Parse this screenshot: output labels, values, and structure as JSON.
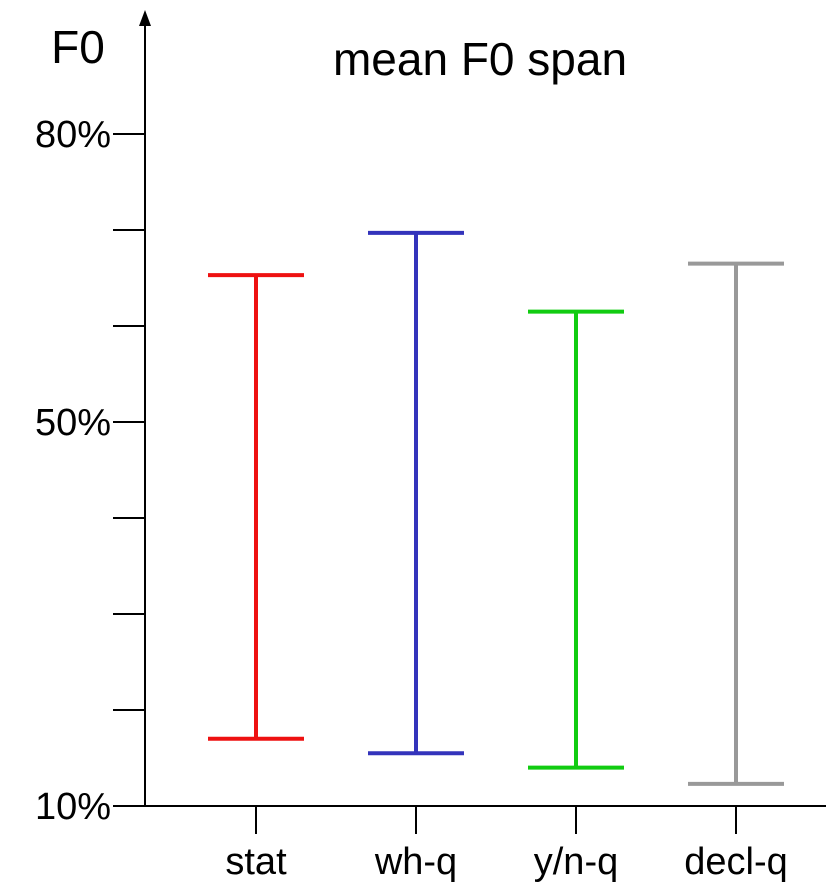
{
  "chart_data": {
    "type": "range-bar",
    "title": "mean F0 span",
    "ylabel": "F0",
    "xlabel": "",
    "categories": [
      "stat",
      "wh-q",
      "y/n-q",
      "decl-q"
    ],
    "series": [
      {
        "category": "stat",
        "low": 17.0,
        "high": 65.3,
        "color": "#ee1111"
      },
      {
        "category": "wh-q",
        "low": 15.5,
        "high": 69.7,
        "color": "#3333bb"
      },
      {
        "category": "y/n-q",
        "low": 14.0,
        "high": 61.5,
        "color": "#11cc11"
      },
      {
        "category": "decl-q",
        "low": 12.3,
        "high": 66.5,
        "color": "#999999"
      }
    ],
    "ylim": [
      10,
      80
    ],
    "yticks": [
      10,
      20,
      30,
      40,
      50,
      60,
      70,
      80
    ],
    "ytick_labels": {
      "10": "10%",
      "50": "50%",
      "80": "80%"
    },
    "grid": false,
    "legend": "none"
  }
}
